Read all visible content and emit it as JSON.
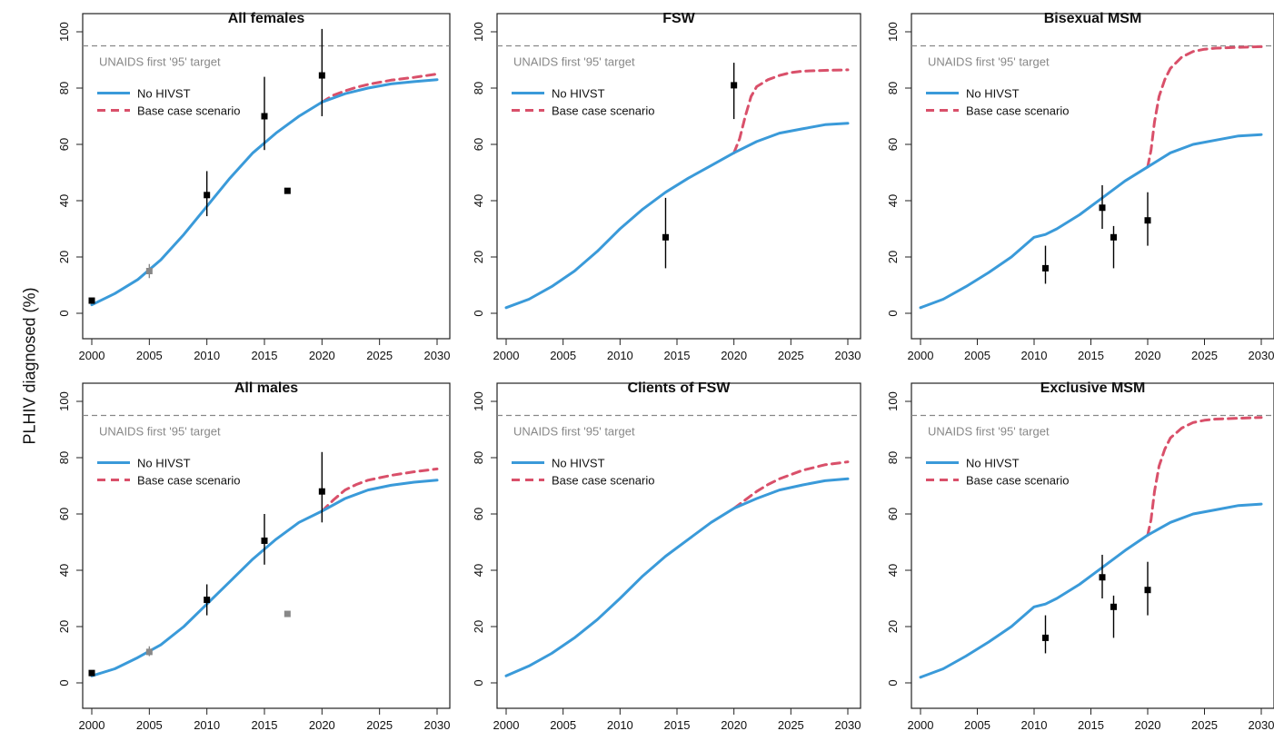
{
  "figure": {
    "ylabel": "PLHIV diagnosed (%)",
    "colors": {
      "no_hivst": "#3a9ad9",
      "base_case": "#d9506a",
      "target": "#888888",
      "data": "#000000",
      "grey_point": "#888888"
    }
  },
  "chart_data": [
    {
      "type": "line",
      "title": "All females",
      "xlim": [
        2000,
        2030
      ],
      "ylim": [
        0,
        100
      ],
      "xticks": [
        2000,
        2005,
        2010,
        2015,
        2020,
        2025,
        2030
      ],
      "yticks": [
        0,
        20,
        40,
        60,
        80,
        100
      ],
      "target": {
        "value": 95,
        "label": "UNAIDS first '95' target"
      },
      "legend": {
        "position": "top-left",
        "entries": [
          "No HIVST",
          "Base case scenario"
        ]
      },
      "series": [
        {
          "name": "No HIVST",
          "style": "solid",
          "x": [
            2000,
            2002,
            2004,
            2006,
            2008,
            2010,
            2012,
            2014,
            2016,
            2018,
            2020,
            2022,
            2024,
            2026,
            2028,
            2030
          ],
          "y": [
            3,
            7,
            12,
            19,
            28,
            38,
            48,
            57,
            64,
            70,
            75,
            78,
            80,
            81.5,
            82.3,
            83
          ]
        },
        {
          "name": "Base case scenario",
          "style": "dashed",
          "x": [
            2020,
            2021,
            2022,
            2023,
            2024,
            2026,
            2028,
            2030
          ],
          "y": [
            75,
            77.5,
            79,
            80.3,
            81.3,
            82.8,
            83.8,
            85
          ]
        }
      ],
      "points": [
        {
          "x": 2000,
          "y": 4.5,
          "color": "black"
        },
        {
          "x": 2005,
          "y": 15,
          "lo": 12.5,
          "hi": 17.5,
          "color": "grey"
        },
        {
          "x": 2010,
          "y": 42,
          "lo": 34.5,
          "hi": 50.5,
          "color": "black"
        },
        {
          "x": 2015,
          "y": 70,
          "lo": 58,
          "hi": 84,
          "color": "black"
        },
        {
          "x": 2017,
          "y": 43.5,
          "color": "black"
        },
        {
          "x": 2020,
          "y": 84.5,
          "lo": 70,
          "hi": 101,
          "color": "black"
        }
      ]
    },
    {
      "type": "line",
      "title": "FSW",
      "xlim": [
        2000,
        2030
      ],
      "ylim": [
        0,
        100
      ],
      "xticks": [
        2000,
        2005,
        2010,
        2015,
        2020,
        2025,
        2030
      ],
      "yticks": [
        0,
        20,
        40,
        60,
        80,
        100
      ],
      "target": {
        "value": 95,
        "label": "UNAIDS first '95' target"
      },
      "legend": {
        "position": "top-left",
        "entries": [
          "No HIVST",
          "Base case scenario"
        ]
      },
      "series": [
        {
          "name": "No HIVST",
          "style": "solid",
          "x": [
            2000,
            2002,
            2004,
            2006,
            2008,
            2010,
            2012,
            2014,
            2016,
            2018,
            2020,
            2022,
            2024,
            2026,
            2028,
            2030
          ],
          "y": [
            2,
            5,
            9.5,
            15,
            22,
            30,
            37,
            43,
            48,
            52.5,
            57,
            61,
            64,
            65.5,
            67,
            67.5
          ]
        },
        {
          "name": "Base case scenario",
          "style": "dashed",
          "x": [
            2020,
            2020.5,
            2021,
            2021.5,
            2022,
            2023,
            2024,
            2025,
            2026,
            2028,
            2030
          ],
          "y": [
            57,
            62,
            70,
            77,
            80.5,
            83,
            84.5,
            85.5,
            86,
            86.3,
            86.5
          ]
        }
      ],
      "points": [
        {
          "x": 2014,
          "y": 27,
          "lo": 16,
          "hi": 41,
          "color": "black"
        },
        {
          "x": 2020,
          "y": 81,
          "lo": 69,
          "hi": 89,
          "color": "black"
        }
      ]
    },
    {
      "type": "line",
      "title": "Bisexual MSM",
      "xlim": [
        2000,
        2030
      ],
      "ylim": [
        0,
        100
      ],
      "xticks": [
        2000,
        2005,
        2010,
        2015,
        2020,
        2025,
        2030
      ],
      "yticks": [
        0,
        20,
        40,
        60,
        80,
        100
      ],
      "target": {
        "value": 95,
        "label": "UNAIDS first '95' target"
      },
      "legend": {
        "position": "top-left",
        "entries": [
          "No HIVST",
          "Base case scenario"
        ]
      },
      "series": [
        {
          "name": "No HIVST",
          "style": "solid",
          "x": [
            2000,
            2002,
            2004,
            2006,
            2008,
            2010,
            2011,
            2012,
            2014,
            2016,
            2018,
            2020,
            2022,
            2024,
            2026,
            2028,
            2030
          ],
          "y": [
            2,
            5,
            9.5,
            14.5,
            20,
            27,
            28,
            30,
            35,
            41,
            47,
            52,
            57,
            60,
            61.5,
            63,
            63.5
          ]
        },
        {
          "name": "Base case scenario",
          "style": "dashed",
          "x": [
            2020,
            2020.3,
            2020.6,
            2021,
            2021.5,
            2022,
            2023,
            2024,
            2025,
            2026,
            2028,
            2030
          ],
          "y": [
            52,
            58,
            68,
            77,
            83,
            87,
            91,
            93,
            93.8,
            94.2,
            94.5,
            94.7
          ]
        }
      ],
      "points": [
        {
          "x": 2011,
          "y": 16,
          "lo": 10.5,
          "hi": 24,
          "color": "black"
        },
        {
          "x": 2016,
          "y": 37.5,
          "lo": 30,
          "hi": 45.5,
          "color": "black"
        },
        {
          "x": 2017,
          "y": 27,
          "lo": 16,
          "hi": 31,
          "color": "black"
        },
        {
          "x": 2020,
          "y": 33,
          "lo": 24,
          "hi": 43,
          "color": "black"
        }
      ]
    },
    {
      "type": "line",
      "title": "All males",
      "xlim": [
        2000,
        2030
      ],
      "ylim": [
        0,
        100
      ],
      "xticks": [
        2000,
        2005,
        2010,
        2015,
        2020,
        2025,
        2030
      ],
      "yticks": [
        0,
        20,
        40,
        60,
        80,
        100
      ],
      "target": {
        "value": 95,
        "label": "UNAIDS first '95' target"
      },
      "legend": {
        "position": "top-left",
        "entries": [
          "No HIVST",
          "Base case scenario"
        ]
      },
      "series": [
        {
          "name": "No HIVST",
          "style": "solid",
          "x": [
            2000,
            2002,
            2004,
            2006,
            2008,
            2010,
            2012,
            2014,
            2016,
            2018,
            2020,
            2022,
            2024,
            2026,
            2028,
            2030
          ],
          "y": [
            2.5,
            5,
            9,
            13.5,
            20,
            28,
            36,
            44,
            51,
            57,
            61,
            65.5,
            68.5,
            70.2,
            71.3,
            72
          ]
        },
        {
          "name": "Base case scenario",
          "style": "dashed",
          "x": [
            2020,
            2021,
            2022,
            2023,
            2024,
            2026,
            2028,
            2030
          ],
          "y": [
            61,
            65,
            68.5,
            70.5,
            72,
            73.7,
            75,
            76
          ]
        }
      ],
      "points": [
        {
          "x": 2000,
          "y": 3.5,
          "color": "black"
        },
        {
          "x": 2005,
          "y": 11,
          "lo": 9.5,
          "hi": 13,
          "color": "grey"
        },
        {
          "x": 2010,
          "y": 29.5,
          "lo": 24,
          "hi": 35,
          "color": "black"
        },
        {
          "x": 2015,
          "y": 50.5,
          "lo": 42,
          "hi": 60,
          "color": "black"
        },
        {
          "x": 2017,
          "y": 24.5,
          "color": "grey"
        },
        {
          "x": 2020,
          "y": 68,
          "lo": 57,
          "hi": 82,
          "color": "black"
        }
      ]
    },
    {
      "type": "line",
      "title": "Clients of FSW",
      "xlim": [
        2000,
        2030
      ],
      "ylim": [
        0,
        100
      ],
      "xticks": [
        2000,
        2005,
        2010,
        2015,
        2020,
        2025,
        2030
      ],
      "yticks": [
        0,
        20,
        40,
        60,
        80,
        100
      ],
      "target": {
        "value": 95,
        "label": "UNAIDS first '95' target"
      },
      "legend": {
        "position": "top-left",
        "entries": [
          "No HIVST",
          "Base case scenario"
        ]
      },
      "series": [
        {
          "name": "No HIVST",
          "style": "solid",
          "x": [
            2000,
            2002,
            2004,
            2006,
            2008,
            2010,
            2012,
            2014,
            2016,
            2018,
            2020,
            2022,
            2024,
            2026,
            2028,
            2030
          ],
          "y": [
            2.5,
            6,
            10.5,
            16,
            22.5,
            30,
            38,
            45,
            51,
            57,
            62,
            65.5,
            68.5,
            70.3,
            71.8,
            72.5
          ]
        },
        {
          "name": "Base case scenario",
          "style": "dashed",
          "x": [
            2020,
            2021,
            2022,
            2023,
            2024,
            2026,
            2028,
            2030
          ],
          "y": [
            62,
            65,
            68,
            70.5,
            72.5,
            75.5,
            77.5,
            78.5
          ]
        }
      ],
      "points": []
    },
    {
      "type": "line",
      "title": "Exclusive MSM",
      "xlim": [
        2000,
        2030
      ],
      "ylim": [
        0,
        100
      ],
      "xticks": [
        2000,
        2005,
        2010,
        2015,
        2020,
        2025,
        2030
      ],
      "yticks": [
        0,
        20,
        40,
        60,
        80,
        100
      ],
      "target": {
        "value": 95,
        "label": "UNAIDS first '95' target"
      },
      "legend": {
        "position": "top-left",
        "entries": [
          "No HIVST",
          "Base case scenario"
        ]
      },
      "series": [
        {
          "name": "No HIVST",
          "style": "solid",
          "x": [
            2000,
            2002,
            2004,
            2006,
            2008,
            2010,
            2011,
            2012,
            2014,
            2016,
            2018,
            2020,
            2022,
            2024,
            2026,
            2028,
            2030
          ],
          "y": [
            2,
            5,
            9.5,
            14.5,
            20,
            27,
            28,
            30,
            35,
            41,
            47,
            52.5,
            57,
            60,
            61.5,
            63,
            63.5
          ]
        },
        {
          "name": "Base case scenario",
          "style": "dashed",
          "x": [
            2020,
            2020.3,
            2020.6,
            2021,
            2021.5,
            2022,
            2023,
            2024,
            2025,
            2026,
            2028,
            2030
          ],
          "y": [
            52.5,
            58,
            68,
            77,
            83,
            87,
            90.5,
            92.5,
            93.3,
            93.7,
            94,
            94.3
          ]
        }
      ],
      "points": [
        {
          "x": 2011,
          "y": 16,
          "lo": 10.5,
          "hi": 24,
          "color": "black"
        },
        {
          "x": 2016,
          "y": 37.5,
          "lo": 30,
          "hi": 45.5,
          "color": "black"
        },
        {
          "x": 2017,
          "y": 27,
          "lo": 16,
          "hi": 31,
          "color": "black"
        },
        {
          "x": 2020,
          "y": 33,
          "lo": 24,
          "hi": 43,
          "color": "black"
        }
      ]
    }
  ]
}
